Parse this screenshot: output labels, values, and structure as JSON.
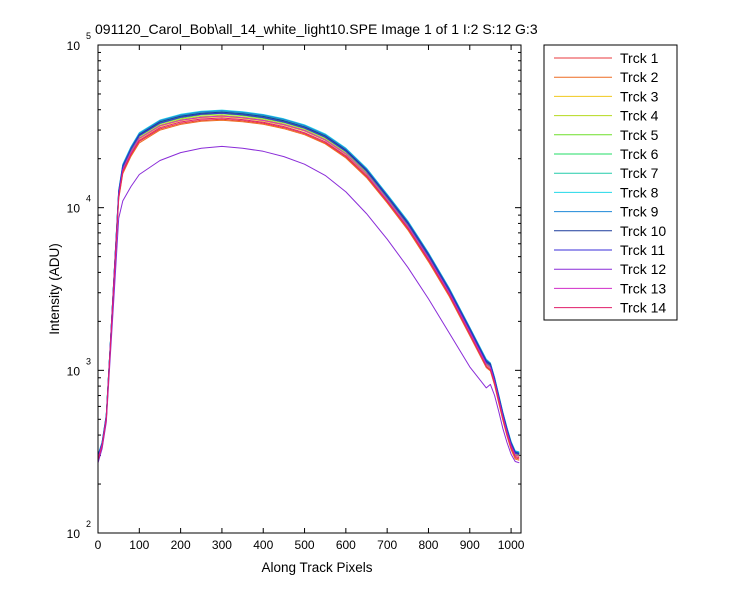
{
  "window": {
    "title": "091120_Carol_Bob\\all_14_white_light10.SPE  Image 1 of 1  I:2  S:12  G:3"
  },
  "chart_data": {
    "type": "line",
    "title": "091120_Carol_Bob\\all_14_white_light10.SPE  Image 1 of 1  I:2  S:12  G:3",
    "xlabel": "Along Track Pixels",
    "ylabel": "Intensity (ADU)",
    "xlim": [
      0,
      1024
    ],
    "ylim": [
      100,
      100000
    ],
    "yscale": "log",
    "grid": false,
    "legend_position": "outside-right",
    "x_ticks": [
      "0",
      "100",
      "200",
      "300",
      "400",
      "500",
      "600",
      "700",
      "800",
      "900",
      "1000"
    ],
    "y_ticks": [
      {
        "base": "10",
        "exp": "2"
      },
      {
        "base": "10",
        "exp": "3"
      },
      {
        "base": "10",
        "exp": "4"
      },
      {
        "base": "10",
        "exp": "5"
      }
    ],
    "x": [
      0,
      10,
      20,
      30,
      40,
      50,
      60,
      80,
      100,
      150,
      200,
      250,
      300,
      350,
      400,
      450,
      500,
      550,
      600,
      650,
      700,
      750,
      800,
      850,
      900,
      940,
      950,
      960,
      970,
      980,
      990,
      1000,
      1010,
      1020
    ],
    "series": [
      {
        "name": "Trck 1",
        "color": "#e8383d",
        "values": [
          280,
          340,
          500,
          1400,
          4000,
          11500,
          16500,
          21000,
          25500,
          30500,
          33000,
          34500,
          35000,
          34200,
          33000,
          31000,
          28500,
          25000,
          20500,
          15500,
          10800,
          7400,
          4700,
          2900,
          1650,
          1050,
          1000,
          820,
          640,
          500,
          400,
          330,
          290,
          285
        ]
      },
      {
        "name": "Trck 2",
        "color": "#ee6c22",
        "values": [
          275,
          335,
          495,
          1380,
          3950,
          11300,
          16200,
          20700,
          25000,
          30000,
          32500,
          34000,
          34500,
          33700,
          32600,
          30600,
          28100,
          24700,
          20200,
          15300,
          10700,
          7300,
          4650,
          2850,
          1630,
          1040,
          990,
          810,
          630,
          495,
          395,
          325,
          285,
          280
        ]
      },
      {
        "name": "Trck 3",
        "color": "#f0c81e",
        "values": [
          285,
          345,
          510,
          1420,
          4100,
          11800,
          17000,
          21700,
          26400,
          31600,
          34200,
          35700,
          36200,
          35400,
          34100,
          32100,
          29500,
          25900,
          21200,
          16000,
          11100,
          7600,
          4850,
          2970,
          1700,
          1080,
          1030,
          840,
          660,
          515,
          410,
          340,
          300,
          295
        ]
      },
      {
        "name": "Trck 4",
        "color": "#b5d91e",
        "values": [
          290,
          350,
          515,
          1440,
          4150,
          12000,
          17300,
          22100,
          26900,
          32200,
          34900,
          36400,
          37000,
          36100,
          34800,
          32700,
          30100,
          26400,
          21600,
          16300,
          11300,
          7750,
          4950,
          3020,
          1730,
          1100,
          1050,
          855,
          670,
          525,
          420,
          345,
          305,
          300
        ]
      },
      {
        "name": "Trck 5",
        "color": "#6fdf2a",
        "values": [
          292,
          352,
          520,
          1450,
          4200,
          12200,
          17600,
          22500,
          27400,
          32800,
          35500,
          37100,
          37700,
          36800,
          35400,
          33300,
          30600,
          26900,
          22000,
          16600,
          11500,
          7850,
          5000,
          3060,
          1750,
          1110,
          1060,
          865,
          680,
          530,
          425,
          350,
          308,
          302
        ]
      },
      {
        "name": "Trck 6",
        "color": "#22dd66",
        "values": [
          295,
          355,
          525,
          1460,
          4250,
          12400,
          17900,
          22900,
          27900,
          33400,
          36200,
          37800,
          38400,
          37500,
          36100,
          33900,
          31200,
          27400,
          22400,
          16900,
          11700,
          8000,
          5100,
          3120,
          1780,
          1130,
          1080,
          880,
          690,
          540,
          430,
          355,
          312,
          306
        ]
      },
      {
        "name": "Trck 7",
        "color": "#22ccaa",
        "values": [
          300,
          360,
          530,
          1480,
          4300,
          12600,
          18200,
          23300,
          28400,
          34000,
          36800,
          38500,
          39100,
          38200,
          36800,
          34600,
          31800,
          27900,
          22800,
          17200,
          11900,
          8150,
          5200,
          3170,
          1810,
          1150,
          1100,
          895,
          700,
          550,
          440,
          360,
          316,
          310
        ]
      },
      {
        "name": "Trck 8",
        "color": "#22d8e8",
        "values": [
          302,
          362,
          535,
          1490,
          4350,
          12800,
          18500,
          23700,
          28900,
          34600,
          37500,
          39200,
          39800,
          38900,
          37400,
          35200,
          32300,
          28400,
          23200,
          17500,
          12100,
          8300,
          5280,
          3220,
          1840,
          1170,
          1110,
          905,
          710,
          555,
          445,
          365,
          320,
          315
        ]
      },
      {
        "name": "Trck 9",
        "color": "#1e88d8",
        "values": [
          300,
          360,
          530,
          1480,
          4300,
          12700,
          18300,
          23500,
          28600,
          34300,
          37100,
          38800,
          39400,
          38500,
          37100,
          34900,
          32000,
          28100,
          23000,
          17350,
          12000,
          8220,
          5240,
          3200,
          1830,
          1160,
          1105,
          900,
          705,
          552,
          442,
          362,
          318,
          312
        ]
      },
      {
        "name": "Trck 10",
        "color": "#1a3a9c",
        "values": [
          296,
          356,
          525,
          1470,
          4260,
          12500,
          18000,
          23000,
          28100,
          33700,
          36500,
          38100,
          38700,
          37800,
          36400,
          34200,
          31400,
          27600,
          22600,
          17050,
          11800,
          8080,
          5150,
          3140,
          1800,
          1140,
          1090,
          885,
          695,
          545,
          435,
          358,
          314,
          308
        ]
      },
      {
        "name": "Trck 11",
        "color": "#3a2cd8",
        "values": [
          294,
          354,
          522,
          1465,
          4230,
          12300,
          17800,
          22800,
          27700,
          33100,
          35900,
          37500,
          38100,
          37200,
          35800,
          33600,
          30900,
          27100,
          22200,
          16750,
          11600,
          7950,
          5060,
          3090,
          1770,
          1120,
          1070,
          875,
          685,
          535,
          428,
          352,
          310,
          304
        ]
      },
      {
        "name": "Trck 12",
        "color": "#8a2cd8",
        "values": [
          270,
          330,
          480,
          1250,
          3200,
          8600,
          11000,
          13500,
          16000,
          19500,
          21800,
          23200,
          23800,
          23200,
          22200,
          20600,
          18500,
          15800,
          12500,
          9200,
          6400,
          4300,
          2750,
          1700,
          1050,
          780,
          820,
          700,
          560,
          440,
          360,
          305,
          275,
          270
        ]
      },
      {
        "name": "Trck 13",
        "color": "#d02cc8",
        "values": [
          288,
          348,
          512,
          1430,
          4120,
          11900,
          17100,
          21900,
          26700,
          31900,
          34500,
          36000,
          36600,
          35700,
          34400,
          32400,
          29800,
          26100,
          21400,
          16150,
          11200,
          7680,
          4900,
          3000,
          1715,
          1090,
          1040,
          848,
          665,
          520,
          415,
          342,
          302,
          296
        ]
      },
      {
        "name": "Trck 14",
        "color": "#e01e6a",
        "values": [
          282,
          342,
          505,
          1410,
          4050,
          11600,
          16700,
          21300,
          25900,
          31000,
          33600,
          35100,
          35600,
          34800,
          33500,
          31500,
          28900,
          25400,
          20800,
          15700,
          10950,
          7500,
          4780,
          2930,
          1670,
          1060,
          1010,
          830,
          650,
          508,
          405,
          335,
          295,
          290
        ]
      }
    ]
  }
}
